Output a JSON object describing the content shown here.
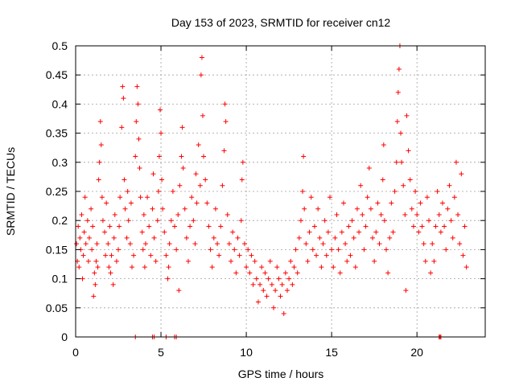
{
  "chart_data": {
    "type": "scatter",
    "title": "Day 153 of 2023, SRMTID for receiver cn12",
    "xlabel": "GPS time / hours",
    "ylabel": "SRMTID / TECUs",
    "xlim": [
      0,
      24
    ],
    "ylim": [
      0,
      0.5
    ],
    "xticks": [
      0,
      5,
      10,
      15,
      20
    ],
    "xtick_labels": [
      "0",
      "5",
      "10",
      "15",
      "20"
    ],
    "yticks": [
      0,
      0.05,
      0.1,
      0.15,
      0.2,
      0.25,
      0.3,
      0.35,
      0.4,
      0.45,
      0.5
    ],
    "ytick_labels": [
      "0",
      "0.05",
      "0.1",
      "0.15",
      "0.2",
      "0.25",
      "0.3",
      "0.35",
      "0.4",
      "0.45",
      "0.5"
    ],
    "grid": true,
    "marker": "plus",
    "series_color": "#ff0000",
    "grid_color": "#a0a0a0",
    "series": [
      {
        "name": "SRMTID",
        "points": [
          [
            0.05,
            0.16
          ],
          [
            0.1,
            0.13
          ],
          [
            0.15,
            0.19
          ],
          [
            0.2,
            0.12
          ],
          [
            0.25,
            0.17
          ],
          [
            0.3,
            0.15
          ],
          [
            0.35,
            0.21
          ],
          [
            0.4,
            0.1
          ],
          [
            0.45,
            0.14
          ],
          [
            0.5,
            0.18
          ],
          [
            0.55,
            0.24
          ],
          [
            0.6,
            0.16
          ],
          [
            0.7,
            0.2
          ],
          [
            0.75,
            0.13
          ],
          [
            0.8,
            0.17
          ],
          [
            0.9,
            0.22
          ],
          [
            0.95,
            0.15
          ],
          [
            1.0,
            0.19
          ],
          [
            1.05,
            0.07
          ],
          [
            1.1,
            0.11
          ],
          [
            1.15,
            0.09
          ],
          [
            1.2,
            0.13
          ],
          [
            1.25,
            0.16
          ],
          [
            1.3,
            0.12
          ],
          [
            1.35,
            0.27
          ],
          [
            1.4,
            0.3
          ],
          [
            1.45,
            0.37
          ],
          [
            1.5,
            0.33
          ],
          [
            1.55,
            0.24
          ],
          [
            1.6,
            0.2
          ],
          [
            1.7,
            0.18
          ],
          [
            1.75,
            0.14
          ],
          [
            1.8,
            0.23
          ],
          [
            1.9,
            0.16
          ],
          [
            1.95,
            0.12
          ],
          [
            2.0,
            0.19
          ],
          [
            2.05,
            0.11
          ],
          [
            2.1,
            0.14
          ],
          [
            2.2,
            0.09
          ],
          [
            2.25,
            0.17
          ],
          [
            2.3,
            0.21
          ],
          [
            2.4,
            0.13
          ],
          [
            2.5,
            0.15
          ],
          [
            2.55,
            0.19
          ],
          [
            2.6,
            0.24
          ],
          [
            2.7,
            0.36
          ],
          [
            2.75,
            0.43
          ],
          [
            2.8,
            0.41
          ],
          [
            2.85,
            0.27
          ],
          [
            2.9,
            0.22
          ],
          [
            3.0,
            0.17
          ],
          [
            3.05,
            0.25
          ],
          [
            3.1,
            0.2
          ],
          [
            3.2,
            0.16
          ],
          [
            3.25,
            0.23
          ],
          [
            3.3,
            0.12
          ],
          [
            3.4,
            0.14
          ],
          [
            3.5,
            0.31
          ],
          [
            3.55,
            0.37
          ],
          [
            3.6,
            0.43
          ],
          [
            3.65,
            0.4
          ],
          [
            3.7,
            0.34
          ],
          [
            3.75,
            0.29
          ],
          [
            3.8,
            0.24
          ],
          [
            3.9,
            0.18
          ],
          [
            3.95,
            0.15
          ],
          [
            4.0,
            0.21
          ],
          [
            4.05,
            0.12
          ],
          [
            4.1,
            0.16
          ],
          [
            4.2,
            0.24
          ],
          [
            4.3,
            0.19
          ],
          [
            4.4,
            0.14
          ],
          [
            4.5,
            0.22
          ],
          [
            4.55,
            0.28
          ],
          [
            4.6,
            0.17
          ],
          [
            4.7,
            0.13
          ],
          [
            4.8,
            0.2
          ],
          [
            4.85,
            0.25
          ],
          [
            4.9,
            0.31
          ],
          [
            4.95,
            0.39
          ],
          [
            5.0,
            0.35
          ],
          [
            5.05,
            0.27
          ],
          [
            5.1,
            0.22
          ],
          [
            5.2,
            0.18
          ],
          [
            5.3,
            0.14
          ],
          [
            5.4,
            0.1
          ],
          [
            5.45,
            0.12
          ],
          [
            5.5,
            0.16
          ],
          [
            5.6,
            0.2
          ],
          [
            5.7,
            0.25
          ],
          [
            5.8,
            0.19
          ],
          [
            5.9,
            0.15
          ],
          [
            6.0,
            0.21
          ],
          [
            6.05,
            0.08
          ],
          [
            6.1,
            0.26
          ],
          [
            6.2,
            0.31
          ],
          [
            6.25,
            0.36
          ],
          [
            6.3,
            0.29
          ],
          [
            6.4,
            0.22
          ],
          [
            6.5,
            0.17
          ],
          [
            6.6,
            0.13
          ],
          [
            6.7,
            0.19
          ],
          [
            6.8,
            0.24
          ],
          [
            6.9,
            0.2
          ],
          [
            7.0,
            0.16
          ],
          [
            7.05,
            0.28
          ],
          [
            7.1,
            0.23
          ],
          [
            7.2,
            0.33
          ],
          [
            7.3,
            0.26
          ],
          [
            7.35,
            0.45
          ],
          [
            7.4,
            0.48
          ],
          [
            7.45,
            0.38
          ],
          [
            7.5,
            0.31
          ],
          [
            7.6,
            0.27
          ],
          [
            7.7,
            0.23
          ],
          [
            7.8,
            0.19
          ],
          [
            7.9,
            0.15
          ],
          [
            8.0,
            0.12
          ],
          [
            8.1,
            0.17
          ],
          [
            8.2,
            0.22
          ],
          [
            8.3,
            0.16
          ],
          [
            8.4,
            0.14
          ],
          [
            8.5,
            0.19
          ],
          [
            8.6,
            0.26
          ],
          [
            8.7,
            0.32
          ],
          [
            8.75,
            0.4
          ],
          [
            8.8,
            0.37
          ],
          [
            8.9,
            0.21
          ],
          [
            9.0,
            0.16
          ],
          [
            9.1,
            0.13
          ],
          [
            9.2,
            0.18
          ],
          [
            9.3,
            0.15
          ],
          [
            9.4,
            0.11
          ],
          [
            9.5,
            0.17
          ],
          [
            9.6,
            0.14
          ],
          [
            9.7,
            0.2
          ],
          [
            9.75,
            0.27
          ],
          [
            9.8,
            0.3
          ],
          [
            9.9,
            0.16
          ],
          [
            10.0,
            0.12
          ],
          [
            10.1,
            0.15
          ],
          [
            10.2,
            0.11
          ],
          [
            10.3,
            0.14
          ],
          [
            10.4,
            0.09
          ],
          [
            10.5,
            0.13
          ],
          [
            10.6,
            0.1
          ],
          [
            10.7,
            0.06
          ],
          [
            10.8,
            0.09
          ],
          [
            10.9,
            0.12
          ],
          [
            11.0,
            0.08
          ],
          [
            11.1,
            0.11
          ],
          [
            11.2,
            0.07
          ],
          [
            11.3,
            0.1
          ],
          [
            11.4,
            0.13
          ],
          [
            11.5,
            0.09
          ],
          [
            11.6,
            0.05
          ],
          [
            11.7,
            0.08
          ],
          [
            11.8,
            0.12
          ],
          [
            11.9,
            0.1
          ],
          [
            12.0,
            0.07
          ],
          [
            12.1,
            0.09
          ],
          [
            12.2,
            0.04
          ],
          [
            12.3,
            0.11
          ],
          [
            12.4,
            0.08
          ],
          [
            12.5,
            0.1
          ],
          [
            12.6,
            0.13
          ],
          [
            12.7,
            0.09
          ],
          [
            12.8,
            0.12
          ],
          [
            12.9,
            0.15
          ],
          [
            13.0,
            0.11
          ],
          [
            13.1,
            0.17
          ],
          [
            13.2,
            0.2
          ],
          [
            13.3,
            0.25
          ],
          [
            13.35,
            0.31
          ],
          [
            13.4,
            0.22
          ],
          [
            13.5,
            0.16
          ],
          [
            13.6,
            0.13
          ],
          [
            13.7,
            0.18
          ],
          [
            13.8,
            0.24
          ],
          [
            13.9,
            0.15
          ],
          [
            14.0,
            0.19
          ],
          [
            14.1,
            0.14
          ],
          [
            14.2,
            0.22
          ],
          [
            14.3,
            0.17
          ],
          [
            14.4,
            0.12
          ],
          [
            14.5,
            0.16
          ],
          [
            14.6,
            0.2
          ],
          [
            14.7,
            0.14
          ],
          [
            14.8,
            0.18
          ],
          [
            14.9,
            0.24
          ],
          [
            15.0,
            0.15
          ],
          [
            15.1,
            0.12
          ],
          [
            15.2,
            0.17
          ],
          [
            15.3,
            0.21
          ],
          [
            15.4,
            0.15
          ],
          [
            15.5,
            0.11
          ],
          [
            15.6,
            0.18
          ],
          [
            15.7,
            0.23
          ],
          [
            15.8,
            0.16
          ],
          [
            15.9,
            0.13
          ],
          [
            16.0,
            0.19
          ],
          [
            16.1,
            0.14
          ],
          [
            16.2,
            0.2
          ],
          [
            16.3,
            0.17
          ],
          [
            16.4,
            0.12
          ],
          [
            16.5,
            0.22
          ],
          [
            16.6,
            0.18
          ],
          [
            16.7,
            0.26
          ],
          [
            16.8,
            0.21
          ],
          [
            16.9,
            0.15
          ],
          [
            17.0,
            0.19
          ],
          [
            17.1,
            0.24
          ],
          [
            17.2,
            0.29
          ],
          [
            17.3,
            0.22
          ],
          [
            17.4,
            0.17
          ],
          [
            17.5,
            0.13
          ],
          [
            17.6,
            0.18
          ],
          [
            17.7,
            0.23
          ],
          [
            17.8,
            0.16
          ],
          [
            17.9,
            0.21
          ],
          [
            18.0,
            0.27
          ],
          [
            18.05,
            0.33
          ],
          [
            18.1,
            0.2
          ],
          [
            18.2,
            0.15
          ],
          [
            18.3,
            0.11
          ],
          [
            18.4,
            0.17
          ],
          [
            18.5,
            0.23
          ],
          [
            18.6,
            0.18
          ],
          [
            18.7,
            0.25
          ],
          [
            18.8,
            0.3
          ],
          [
            18.85,
            0.37
          ],
          [
            18.9,
            0.42
          ],
          [
            18.95,
            0.46
          ],
          [
            19.0,
            0.5
          ],
          [
            19.05,
            0.35
          ],
          [
            19.1,
            0.3
          ],
          [
            19.2,
            0.26
          ],
          [
            19.3,
            0.21
          ],
          [
            19.35,
            0.08
          ],
          [
            19.4,
            0.38
          ],
          [
            19.5,
            0.32
          ],
          [
            19.6,
            0.27
          ],
          [
            19.7,
            0.22
          ],
          [
            19.8,
            0.19
          ],
          [
            19.9,
            0.25
          ],
          [
            20.0,
            0.21
          ],
          [
            20.1,
            0.18
          ],
          [
            20.2,
            0.23
          ],
          [
            20.3,
            0.19
          ],
          [
            20.4,
            0.16
          ],
          [
            20.5,
            0.13
          ],
          [
            20.6,
            0.24
          ],
          [
            20.7,
            0.2
          ],
          [
            20.8,
            0.11
          ],
          [
            20.9,
            0.16
          ],
          [
            21.0,
            0.13
          ],
          [
            21.1,
            0.19
          ],
          [
            21.2,
            0.25
          ],
          [
            21.3,
            0.21
          ],
          [
            21.4,
            0.18
          ],
          [
            21.5,
            0.23
          ],
          [
            21.6,
            0.19
          ],
          [
            21.7,
            0.15
          ],
          [
            21.8,
            0.22
          ],
          [
            21.9,
            0.26
          ],
          [
            22.0,
            0.2
          ],
          [
            22.1,
            0.17
          ],
          [
            22.2,
            0.24
          ],
          [
            22.3,
            0.3
          ],
          [
            22.4,
            0.21
          ],
          [
            22.5,
            0.16
          ],
          [
            22.6,
            0.28
          ],
          [
            22.7,
            0.14
          ],
          [
            22.8,
            0.19
          ],
          [
            22.9,
            0.12
          ],
          [
            3.5,
            0.0
          ],
          [
            4.5,
            0.0
          ],
          [
            4.6,
            0.0
          ],
          [
            5.3,
            0.0
          ],
          [
            5.8,
            0.0
          ],
          [
            5.9,
            0.0
          ],
          [
            21.3,
            0.0
          ],
          [
            21.35,
            0.0
          ],
          [
            21.4,
            0.0
          ]
        ]
      }
    ]
  }
}
